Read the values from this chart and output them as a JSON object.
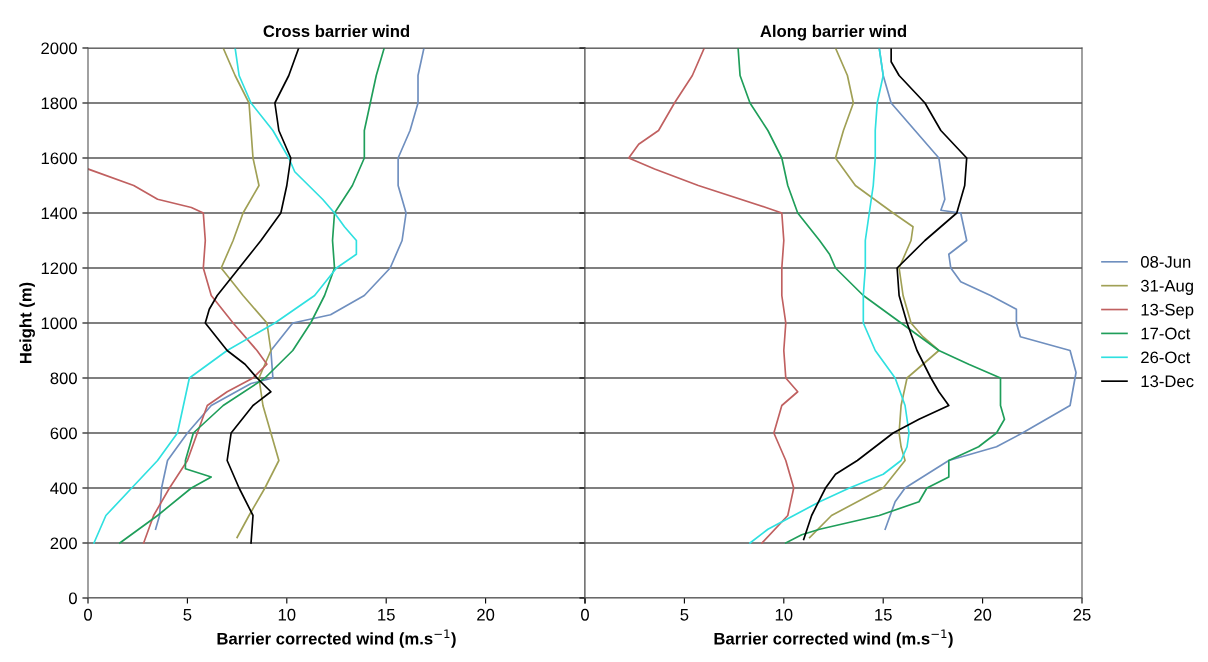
{
  "chart_data": [
    {
      "type": "line",
      "title": "Cross barrier wind",
      "xlabel": "Barrier corrected wind (m.s$^{−1}$)",
      "ylabel": "Height (m)",
      "xlim": [
        0,
        25
      ],
      "xticks": [
        0,
        5,
        10,
        15,
        20,
        {
          "value": 25,
          "label": null
        }
      ],
      "ylim": [
        0,
        2000
      ],
      "yticks": [
        0,
        200,
        400,
        600,
        800,
        1000,
        1200,
        1400,
        1600,
        1800,
        2000
      ],
      "grid": "y",
      "marker": "none",
      "line_style": "solid",
      "series": [
        {
          "color": "#6f8fbf",
          "x": [
            3.4,
            3.6,
            3.7,
            4.0,
            5.0,
            6.2,
            8.2,
            9.3,
            9.2,
            10.3,
            12.2,
            13.9,
            15.2,
            15.8,
            16.0,
            15.6,
            15.6,
            16.2,
            16.6,
            16.6,
            16.9
          ],
          "values": [
            250,
            300,
            400,
            500,
            600,
            700,
            780,
            800,
            900,
            1000,
            1030,
            1100,
            1200,
            1300,
            1400,
            1500,
            1600,
            1700,
            1800,
            1900,
            2000
          ]
        },
        {
          "color": "#a0a055",
          "x": [
            7.5,
            8.1,
            8.9,
            9.6,
            9.2,
            8.8,
            8.6,
            9.2,
            9.0,
            7.8,
            6.7,
            7.3,
            7.8,
            8.6,
            8.3,
            8.2,
            8.1,
            7.4,
            6.8
          ],
          "values": [
            220,
            300,
            400,
            500,
            600,
            700,
            800,
            900,
            1000,
            1100,
            1200,
            1300,
            1400,
            1500,
            1600,
            1700,
            1800,
            1900,
            2000
          ]
        },
        {
          "color": "#c06060",
          "x": [
            2.8,
            3.3,
            4.1,
            5.0,
            5.5,
            6.0,
            7.0,
            8.3,
            9.0,
            8.5,
            7.3,
            6.2,
            5.8,
            5.9,
            5.8,
            5.2,
            3.5,
            2.3,
            0
          ],
          "values": [
            200,
            300,
            400,
            500,
            600,
            700,
            750,
            800,
            850,
            900,
            1000,
            1100,
            1200,
            1300,
            1400,
            1420,
            1450,
            1500,
            1560
          ]
        },
        {
          "color": "#1f9e5a",
          "x": [
            1.6,
            3.5,
            5.2,
            6.2,
            4.9,
            4.9,
            5.3,
            6.8,
            8.9,
            10.3,
            11.2,
            11.9,
            12.4,
            12.3,
            12.4,
            13.3,
            13.9,
            13.9,
            14.2,
            14.5,
            14.9
          ],
          "values": [
            200,
            300,
            400,
            440,
            470,
            500,
            600,
            700,
            800,
            900,
            1000,
            1100,
            1200,
            1300,
            1400,
            1500,
            1600,
            1700,
            1800,
            1900,
            2000
          ]
        },
        {
          "color": "#2fe0e0",
          "x": [
            0.3,
            0.9,
            2.2,
            3.5,
            4.5,
            4.8,
            5.1,
            7.0,
            9.4,
            11.4,
            12.5,
            13.5,
            13.5,
            12.9,
            12.4,
            11.8,
            11.1,
            10.4,
            10.1,
            9.3,
            8.2,
            7.6,
            7.4
          ],
          "values": [
            200,
            300,
            400,
            500,
            600,
            700,
            800,
            900,
            1000,
            1100,
            1200,
            1250,
            1300,
            1350,
            1400,
            1450,
            1500,
            1550,
            1600,
            1700,
            1800,
            1900,
            2000
          ]
        },
        {
          "color": "#000000",
          "x": [
            8.2,
            8.3,
            7.6,
            7.0,
            7.2,
            8.3,
            9.2,
            8.5,
            7.9,
            7.0,
            5.9,
            6.1,
            6.5,
            7.6,
            8.7,
            9.7,
            10.0,
            10.2,
            9.6,
            9.4,
            10.1,
            10.6
          ],
          "values": [
            200,
            300,
            400,
            500,
            600,
            700,
            750,
            800,
            850,
            900,
            1000,
            1050,
            1100,
            1200,
            1300,
            1400,
            1500,
            1600,
            1700,
            1800,
            1900,
            2000
          ]
        }
      ]
    },
    {
      "type": "line",
      "title": "Along barrier wind",
      "xlabel": "Barrier corrected wind (m.s$^{−1}$)",
      "xlim": [
        0,
        25
      ],
      "xticks": [
        0,
        5,
        10,
        15,
        20,
        25
      ],
      "ylim": [
        0,
        2000
      ],
      "yticks": [
        0,
        200,
        400,
        600,
        800,
        1000,
        1200,
        1400,
        1600,
        1800,
        2000
      ],
      "tick_labels": "x",
      "grid": "y",
      "legend": "right",
      "marker": "none",
      "line_style": "solid",
      "series": [
        {
          "name": "08-Jun",
          "color": "#6f8fbf",
          "x": [
            15.1,
            15.6,
            16.1,
            18.3,
            20.7,
            22.0,
            24.4,
            24.7,
            24.4,
            21.9,
            21.7,
            21.7,
            20.4,
            18.9,
            18.4,
            18.3,
            19.2,
            18.9,
            17.9,
            18.1,
            17.8,
            16.6,
            15.4,
            15.0,
            14.8
          ],
          "values": [
            250,
            350,
            400,
            500,
            550,
            600,
            700,
            820,
            900,
            950,
            1000,
            1050,
            1100,
            1150,
            1200,
            1250,
            1300,
            1400,
            1410,
            1450,
            1600,
            1700,
            1800,
            1900,
            2000
          ]
        },
        {
          "name": "31-Aug",
          "color": "#a0a055",
          "x": [
            11.3,
            12.4,
            15.0,
            16.1,
            15.9,
            15.8,
            15.9,
            16.2,
            17.8,
            17.0,
            16.4,
            16.0,
            15.8,
            16.4,
            16.5,
            15.5,
            13.6,
            12.6,
            13.0,
            13.5,
            13.2,
            12.6
          ],
          "values": [
            220,
            300,
            400,
            500,
            550,
            600,
            700,
            800,
            900,
            950,
            1000,
            1100,
            1200,
            1300,
            1350,
            1400,
            1500,
            1600,
            1700,
            1800,
            1900,
            2000
          ]
        },
        {
          "name": "13-Sep",
          "color": "#c06060",
          "x": [
            8.9,
            10.2,
            10.5,
            10.1,
            9.5,
            9.9,
            10.7,
            10.1,
            10.0,
            10.1,
            9.9,
            9.9,
            10.0,
            9.9,
            9.1,
            5.7,
            3.5,
            2.2,
            2.7,
            3.7,
            4.5,
            5.4,
            6.0
          ],
          "values": [
            200,
            300,
            400,
            500,
            600,
            700,
            750,
            800,
            900,
            1000,
            1100,
            1200,
            1300,
            1400,
            1420,
            1500,
            1560,
            1600,
            1650,
            1700,
            1800,
            1900,
            2000
          ]
        },
        {
          "name": "17-Oct",
          "color": "#1f9e5a",
          "x": [
            10.1,
            10.9,
            11.8,
            14.8,
            16.8,
            17.2,
            18.3,
            18.3,
            19.8,
            20.7,
            21.1,
            20.9,
            20.9,
            19.3,
            17.8,
            15.9,
            14.0,
            12.6,
            12.3,
            11.8,
            10.7,
            10.2,
            9.9,
            9.2,
            8.3,
            7.8,
            7.7
          ],
          "values": [
            200,
            230,
            250,
            300,
            350,
            400,
            440,
            500,
            550,
            600,
            650,
            700,
            800,
            850,
            900,
            1000,
            1100,
            1200,
            1250,
            1300,
            1400,
            1500,
            1600,
            1700,
            1800,
            1900,
            2000
          ]
        },
        {
          "name": "26-Oct",
          "color": "#2fe0e0",
          "x": [
            8.3,
            9.2,
            10.5,
            11.8,
            13.3,
            15.0,
            15.9,
            16.2,
            16.3,
            16.1,
            15.6,
            14.6,
            14.0,
            14.0,
            14.1,
            14.1,
            14.3,
            14.5,
            14.6,
            14.6,
            14.7,
            15.0,
            14.8
          ],
          "values": [
            200,
            250,
            300,
            350,
            400,
            450,
            500,
            550,
            600,
            700,
            800,
            900,
            1000,
            1100,
            1200,
            1300,
            1400,
            1500,
            1600,
            1700,
            1800,
            1900,
            2000
          ]
        },
        {
          "name": "13-Dec",
          "color": "#000000",
          "x": [
            11.0,
            11.4,
            12.1,
            12.6,
            13.7,
            15.5,
            16.8,
            18.3,
            17.8,
            17.4,
            16.7,
            16.2,
            15.8,
            15.7,
            17.1,
            18.7,
            19.1,
            19.2,
            17.9,
            17.1,
            15.8,
            15.4,
            15.4
          ],
          "values": [
            213,
            300,
            400,
            450,
            500,
            600,
            650,
            700,
            750,
            800,
            900,
            1000,
            1100,
            1200,
            1300,
            1400,
            1500,
            1600,
            1700,
            1800,
            1900,
            1950,
            2000
          ]
        }
      ]
    }
  ]
}
